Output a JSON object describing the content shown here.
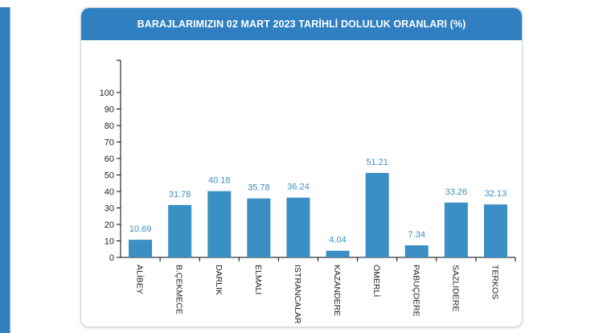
{
  "header": {
    "title": "BARAJLARIMIZIN 02 MART 2023 TARİHLİ DOLULUK ORANLARI (%)"
  },
  "chart_data": {
    "type": "bar",
    "title": "BARAJLARIMIZIN 02 MART 2023 TARİHLİ DOLULUK ORANLARI (%)",
    "categories": [
      "ALİBEY",
      "B.ÇEKMECE",
      "DARLIK",
      "ELMALI",
      "ISTRANCALAR",
      "KAZANDERE",
      "ÖMERLİ",
      "PABUÇDERE",
      "SAZLIDERE",
      "TERKOS"
    ],
    "values": [
      10.69,
      31.78,
      40.18,
      35.78,
      36.24,
      4.04,
      51.21,
      7.34,
      33.26,
      32.13
    ],
    "value_labels": [
      "10.69",
      "31.78",
      "40.18",
      "35.78",
      "36.24",
      "4.04",
      "51.21",
      "7.34",
      "33.26",
      "32.13"
    ],
    "yticks": [
      "0",
      "10",
      "20",
      "30",
      "40",
      "50",
      "60",
      "70",
      "80",
      "90",
      "100"
    ],
    "ylim": [
      0,
      100
    ],
    "grid": false,
    "legend": "none",
    "bar_color": "#3a8fc4",
    "label_color": "#3a8fc4"
  }
}
